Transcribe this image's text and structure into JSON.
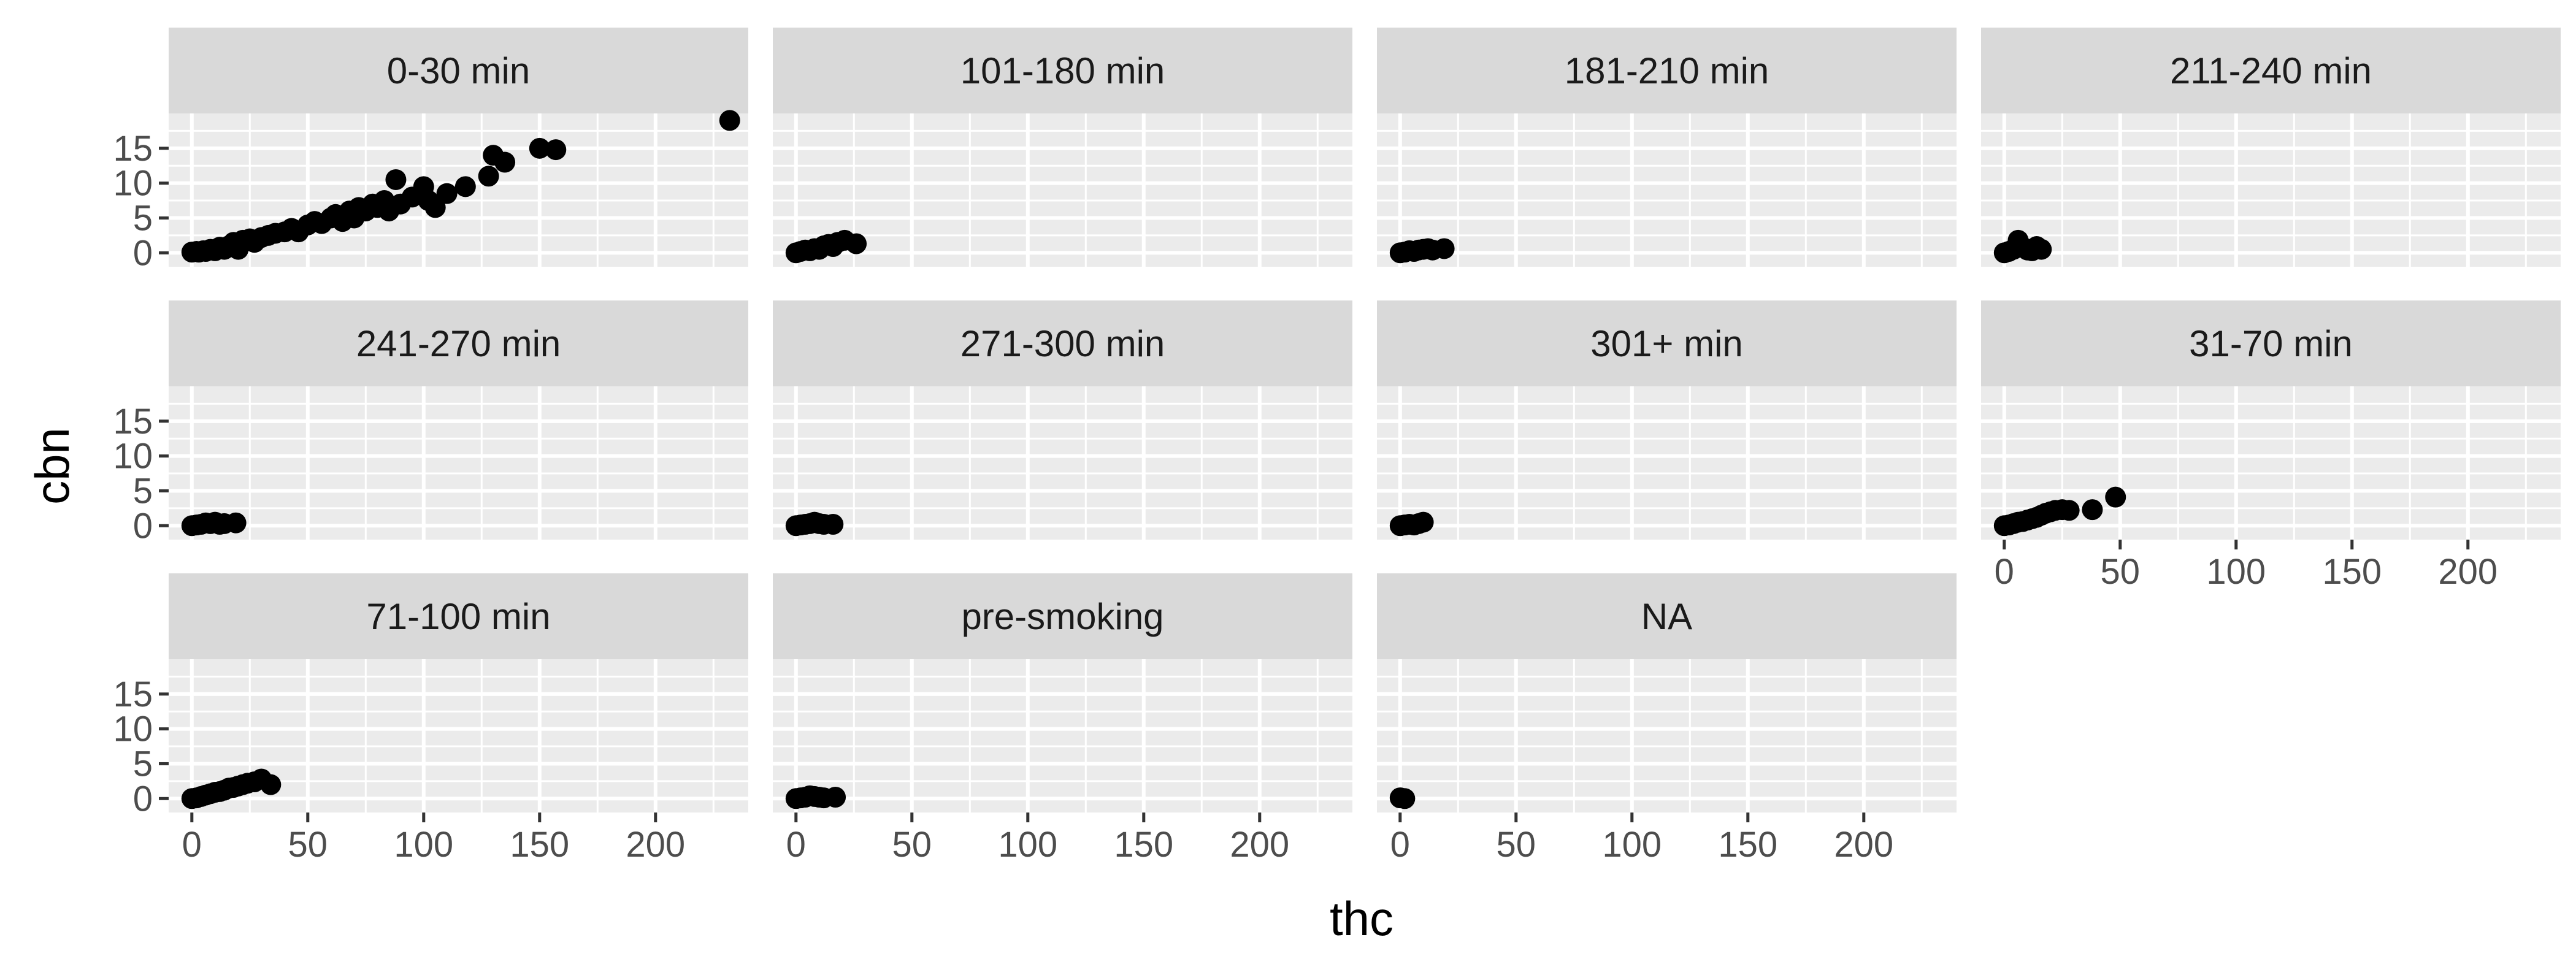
{
  "chart_data": {
    "type": "scatter",
    "xlabel": "thc",
    "ylabel": "cbn",
    "xlim": [
      -10,
      240
    ],
    "ylim": [
      -2,
      20
    ],
    "x_ticks": [
      0,
      50,
      100,
      150,
      200
    ],
    "x_tick_labels": [
      "0",
      "50",
      "100",
      "150",
      "200"
    ],
    "y_ticks": [
      0,
      5,
      10,
      15
    ],
    "y_tick_labels": [
      "0",
      "5",
      "10",
      "15"
    ],
    "grid": true,
    "legend": "none",
    "colors": {
      "panel_bg": "#ebebeb",
      "strip_bg": "#d9d9d9",
      "grid": "#ffffff",
      "point": "#000000"
    },
    "facets": [
      {
        "label": "0-30 min",
        "points": [
          [
            0,
            0.1
          ],
          [
            2,
            0.2
          ],
          [
            3,
            0.1
          ],
          [
            5,
            0.3
          ],
          [
            6,
            0.2
          ],
          [
            8,
            0.5
          ],
          [
            10,
            0.3
          ],
          [
            12,
            0.8
          ],
          [
            14,
            0.5
          ],
          [
            16,
            1
          ],
          [
            18,
            1.5
          ],
          [
            20,
            0.5
          ],
          [
            22,
            1.8
          ],
          [
            25,
            2
          ],
          [
            27,
            1.5
          ],
          [
            30,
            2.2
          ],
          [
            33,
            2.5
          ],
          [
            36,
            2.8
          ],
          [
            40,
            3
          ],
          [
            43,
            3.5
          ],
          [
            46,
            3
          ],
          [
            50,
            4
          ],
          [
            53,
            4.5
          ],
          [
            56,
            4.2
          ],
          [
            60,
            5
          ],
          [
            62,
            5.5
          ],
          [
            65,
            4.5
          ],
          [
            68,
            6
          ],
          [
            70,
            5
          ],
          [
            72,
            6.5
          ],
          [
            75,
            6
          ],
          [
            78,
            7
          ],
          [
            80,
            6.5
          ],
          [
            83,
            7.5
          ],
          [
            85,
            6
          ],
          [
            88,
            10.5
          ],
          [
            90,
            7
          ],
          [
            95,
            8
          ],
          [
            100,
            9.5
          ],
          [
            102,
            7.5
          ],
          [
            105,
            6.5
          ],
          [
            110,
            8.5
          ],
          [
            118,
            9.5
          ],
          [
            128,
            11
          ],
          [
            130,
            14
          ],
          [
            135,
            13
          ],
          [
            150,
            15
          ],
          [
            157,
            14.8
          ],
          [
            232,
            19
          ]
        ]
      },
      {
        "label": "101-180 min",
        "points": [
          [
            0,
            0
          ],
          [
            2,
            0.2
          ],
          [
            4,
            0.4
          ],
          [
            6,
            0.3
          ],
          [
            8,
            0.6
          ],
          [
            10,
            0.5
          ],
          [
            12,
            1
          ],
          [
            14,
            1.2
          ],
          [
            16,
            0.9
          ],
          [
            18,
            1.5
          ],
          [
            21,
            1.8
          ],
          [
            26,
            1.3
          ]
        ]
      },
      {
        "label": "181-210 min",
        "points": [
          [
            0,
            0
          ],
          [
            2,
            0.1
          ],
          [
            4,
            0.3
          ],
          [
            6,
            0.2
          ],
          [
            8,
            0.4
          ],
          [
            10,
            0.5
          ],
          [
            12,
            0.6
          ],
          [
            14,
            0.4
          ],
          [
            19,
            0.6
          ]
        ]
      },
      {
        "label": "211-240 min",
        "points": [
          [
            0,
            0
          ],
          [
            2,
            0.2
          ],
          [
            4,
            0.5
          ],
          [
            6,
            1.8
          ],
          [
            8,
            0.8
          ],
          [
            10,
            0.4
          ],
          [
            12,
            0.3
          ],
          [
            14,
            0.9
          ],
          [
            16,
            0.5
          ]
        ]
      },
      {
        "label": "241-270 min",
        "points": [
          [
            0,
            0
          ],
          [
            2,
            0.1
          ],
          [
            4,
            0.2
          ],
          [
            6,
            0.4
          ],
          [
            8,
            0.3
          ],
          [
            10,
            0.5
          ],
          [
            12,
            0.2
          ],
          [
            14,
            0.3
          ],
          [
            19,
            0.4
          ]
        ]
      },
      {
        "label": "271-300 min",
        "points": [
          [
            0,
            0
          ],
          [
            2,
            0.1
          ],
          [
            4,
            0.2
          ],
          [
            6,
            0.3
          ],
          [
            8,
            0.5
          ],
          [
            10,
            0.3
          ],
          [
            12,
            0.2
          ],
          [
            16,
            0.2
          ]
        ]
      },
      {
        "label": "301+ min",
        "points": [
          [
            0,
            0
          ],
          [
            2,
            0.1
          ],
          [
            4,
            0.2
          ],
          [
            6,
            0.1
          ],
          [
            8,
            0.3
          ],
          [
            10,
            0.5
          ]
        ]
      },
      {
        "label": "31-70 min",
        "points": [
          [
            0,
            0
          ],
          [
            2,
            0.1
          ],
          [
            4,
            0.3
          ],
          [
            6,
            0.5
          ],
          [
            8,
            0.6
          ],
          [
            10,
            0.8
          ],
          [
            12,
            1
          ],
          [
            14,
            1.2
          ],
          [
            16,
            1.5
          ],
          [
            18,
            1.8
          ],
          [
            20,
            2
          ],
          [
            22,
            2.2
          ],
          [
            25,
            2.3
          ],
          [
            28,
            2.2
          ],
          [
            38,
            2.3
          ],
          [
            48,
            4.1
          ]
        ]
      },
      {
        "label": "71-100 min",
        "points": [
          [
            0,
            0
          ],
          [
            2,
            0.1
          ],
          [
            4,
            0.3
          ],
          [
            6,
            0.5
          ],
          [
            8,
            0.7
          ],
          [
            10,
            0.9
          ],
          [
            12,
            1
          ],
          [
            14,
            1.2
          ],
          [
            16,
            1.5
          ],
          [
            18,
            1.6
          ],
          [
            20,
            1.8
          ],
          [
            22,
            2
          ],
          [
            24,
            2.2
          ],
          [
            27,
            2.4
          ],
          [
            30,
            2.8
          ],
          [
            34,
            2
          ]
        ]
      },
      {
        "label": "pre-smoking",
        "points": [
          [
            0,
            0
          ],
          [
            2,
            0.1
          ],
          [
            4,
            0.2
          ],
          [
            6,
            0.4
          ],
          [
            8,
            0.3
          ],
          [
            10,
            0.2
          ],
          [
            12,
            0.1
          ],
          [
            17,
            0.2
          ]
        ]
      },
      {
        "label": "NA",
        "points": [
          [
            0,
            0.1
          ],
          [
            2,
            0
          ]
        ]
      }
    ]
  }
}
